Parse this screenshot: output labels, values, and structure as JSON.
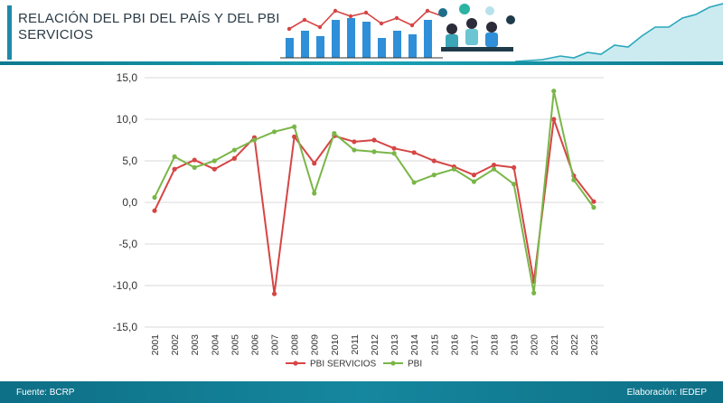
{
  "header": {
    "title": "RELACIÓN DEL PBI DEL PAÍS Y DEL PBI SERVICIOS"
  },
  "footer": {
    "source": "Fuente: BCRP",
    "credit": "Elaboración: IEDEP"
  },
  "colors": {
    "series_pbi_servicios": "#d64545",
    "series_pbi": "#7ab648",
    "accent": "#1590a8"
  },
  "chart_data": {
    "type": "line",
    "x": [
      "2001",
      "2002",
      "2003",
      "2004",
      "2005",
      "2006",
      "2007",
      "2008",
      "2009",
      "2010",
      "2011",
      "2012",
      "2013",
      "2014",
      "2015",
      "2016",
      "2017",
      "2018",
      "2019",
      "2020",
      "2021",
      "2022",
      "2023"
    ],
    "ylim": [
      -15,
      15
    ],
    "yticks": [
      "15,0",
      "10,0",
      "5,0",
      "0,0",
      "-5,0",
      "-10,0",
      "-15,0"
    ],
    "ytick_values": [
      15,
      10,
      5,
      0,
      -5,
      -10,
      -15
    ],
    "grid": true,
    "legend_position": "bottom",
    "series": [
      {
        "name": "PBI SERVICIOS",
        "values": [
          -1.0,
          4.0,
          5.1,
          4.0,
          5.3,
          7.8,
          -11.0,
          7.9,
          4.7,
          8.0,
          7.3,
          7.5,
          6.5,
          6.0,
          5.0,
          4.3,
          3.3,
          4.5,
          4.2,
          -9.5,
          10.0,
          3.2,
          0.1
        ]
      },
      {
        "name": "PBI",
        "values": [
          0.6,
          5.5,
          4.2,
          5.0,
          6.3,
          7.5,
          8.5,
          9.1,
          1.1,
          8.3,
          6.3,
          6.1,
          5.9,
          2.4,
          3.3,
          4.0,
          2.5,
          4.0,
          2.2,
          -10.9,
          13.4,
          2.7,
          -0.6
        ]
      }
    ]
  }
}
